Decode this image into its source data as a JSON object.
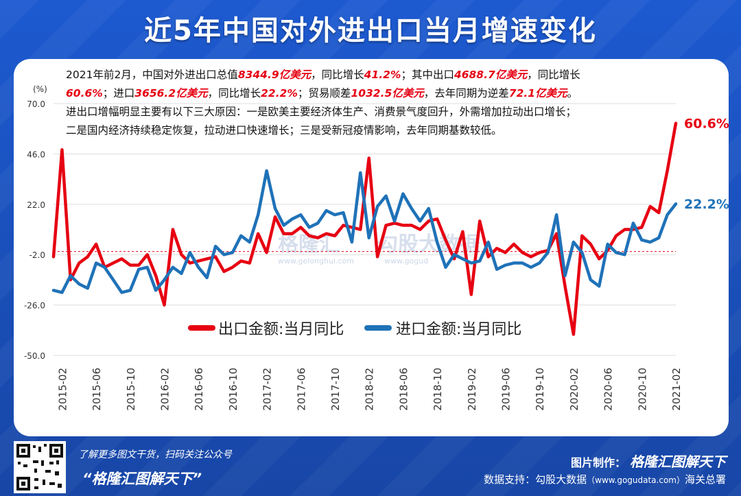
{
  "title": "近5年中国对外进出口当月增速变化",
  "note": {
    "l1a": "2021年前2月，中国对外进出口总值",
    "l1b": "8344.9亿美元",
    "l1c": "，同比增长",
    "l1d": "41.2%",
    "l1e": "；其中出口",
    "l1f": "4688.7亿美元",
    "l1g": "，同比增长",
    "l2a": "60.6%",
    "l2b": "；进口",
    "l2c": "3656.2亿美元",
    "l2d": "，同比增长",
    "l2e": "22.2%",
    "l2f": "；贸易顺差",
    "l2g": "1032.5亿美元",
    "l2h": "，去年同期为逆差",
    "l2i": "72.1亿美元",
    "l2j": "。",
    "l3": "进出口增幅明显主要有以下三大原因：一是欧美主要经济体生产、消费景气度回升，外需增加拉动出口增长；",
    "l4": "二是国内经济持续稳定恢复，拉动进口快速增长；三是受新冠疫情影响，去年同期基数较低。"
  },
  "watermark": {
    "a": "格隆汇",
    "b": "www.gelonghui.com",
    "c": "勾股大数据",
    "d": "www.gogud"
  },
  "footer": {
    "left1": "了解更多图文干货，扫码关注公众号",
    "left2": "“格隆汇图解天下”",
    "right1_label": "图片制作：",
    "right1_brand": "格隆汇图解天下",
    "right2_label": "数据支持：",
    "right2_src": "勾股大数据",
    "right2_url": "（www.gogudata.com）",
    "right2_other": "海关总署"
  },
  "colors": {
    "export": "#e60012",
    "import": "#1f72b8",
    "background": "#1a4fb5"
  },
  "chart_data": {
    "type": "line",
    "ylabel": "(%)",
    "ylim": [
      -50,
      70
    ],
    "yticks": [
      70.0,
      46.0,
      22.0,
      -2.0,
      -26.0,
      -50.0
    ],
    "reference_line": -0.5,
    "x_labels": [
      "2015-02",
      "2015-06",
      "2015-10",
      "2016-02",
      "2016-06",
      "2016-10",
      "2017-02",
      "2017-06",
      "2017-10",
      "2018-02",
      "2018-06",
      "2018-10",
      "2019-02",
      "2019-06",
      "2019-10",
      "2020-02",
      "2020-06",
      "2020-10",
      "2021-02"
    ],
    "x": [
      "2015-01",
      "2015-02",
      "2015-03",
      "2015-04",
      "2015-05",
      "2015-06",
      "2015-07",
      "2015-08",
      "2015-09",
      "2015-10",
      "2015-11",
      "2015-12",
      "2016-01",
      "2016-02",
      "2016-03",
      "2016-04",
      "2016-05",
      "2016-06",
      "2016-07",
      "2016-08",
      "2016-09",
      "2016-10",
      "2016-11",
      "2016-12",
      "2017-01",
      "2017-02",
      "2017-03",
      "2017-04",
      "2017-05",
      "2017-06",
      "2017-07",
      "2017-08",
      "2017-09",
      "2017-10",
      "2017-11",
      "2017-12",
      "2018-01",
      "2018-02",
      "2018-03",
      "2018-04",
      "2018-05",
      "2018-06",
      "2018-07",
      "2018-08",
      "2018-09",
      "2018-10",
      "2018-11",
      "2018-12",
      "2019-01",
      "2019-02",
      "2019-03",
      "2019-04",
      "2019-05",
      "2019-06",
      "2019-07",
      "2019-08",
      "2019-09",
      "2019-10",
      "2019-11",
      "2019-12",
      "2020-01",
      "2020-02",
      "2020-03",
      "2020-04",
      "2020-05",
      "2020-06",
      "2020-07",
      "2020-08",
      "2020-09",
      "2020-10",
      "2020-11",
      "2020-12",
      "2021-01",
      "2021-02"
    ],
    "series": [
      {
        "name": "出口金额:当月同比",
        "color": "#e60012",
        "end_label": "60.6%",
        "values": [
          -3,
          48,
          -14,
          -6,
          -3,
          3,
          -8,
          -6,
          -4,
          -7,
          -7,
          -2,
          -12,
          -26,
          10,
          -2,
          -6,
          -5,
          -4,
          -3,
          -10,
          -8,
          -5,
          -6,
          8,
          -1,
          16,
          8,
          8,
          11,
          7,
          6,
          8,
          7,
          12,
          11,
          10,
          44,
          -3,
          12,
          13,
          12,
          12,
          10,
          14,
          15,
          5,
          -4,
          9,
          -21,
          14,
          -3,
          1,
          -1,
          3,
          -1,
          -3,
          -1,
          0,
          8,
          -17,
          -40,
          7,
          3,
          -4,
          0,
          7,
          10,
          10,
          11,
          21,
          18,
          38,
          60.6
        ]
      },
      {
        "name": "进口金额:当月同比",
        "color": "#1f72b8",
        "end_label": "22.2%",
        "values": [
          -19,
          -20,
          -12,
          -16,
          -18,
          -6,
          -8,
          -14,
          -20,
          -19,
          -9,
          -8,
          -19,
          -14,
          -8,
          -11,
          -1,
          -8,
          -13,
          2,
          -2,
          -1,
          7,
          4,
          17,
          38,
          20,
          12,
          15,
          17,
          11,
          13,
          19,
          17,
          18,
          4,
          37,
          6,
          21,
          26,
          14,
          27,
          20,
          14,
          20,
          4,
          -8,
          -2,
          -4,
          -6,
          -5,
          4,
          -9,
          -7,
          -6,
          -6,
          -8,
          -6,
          -1,
          17,
          -12,
          4,
          -1,
          -14,
          -17,
          3,
          -1,
          -2,
          13,
          5,
          4,
          6,
          17,
          22.2
        ]
      }
    ]
  }
}
